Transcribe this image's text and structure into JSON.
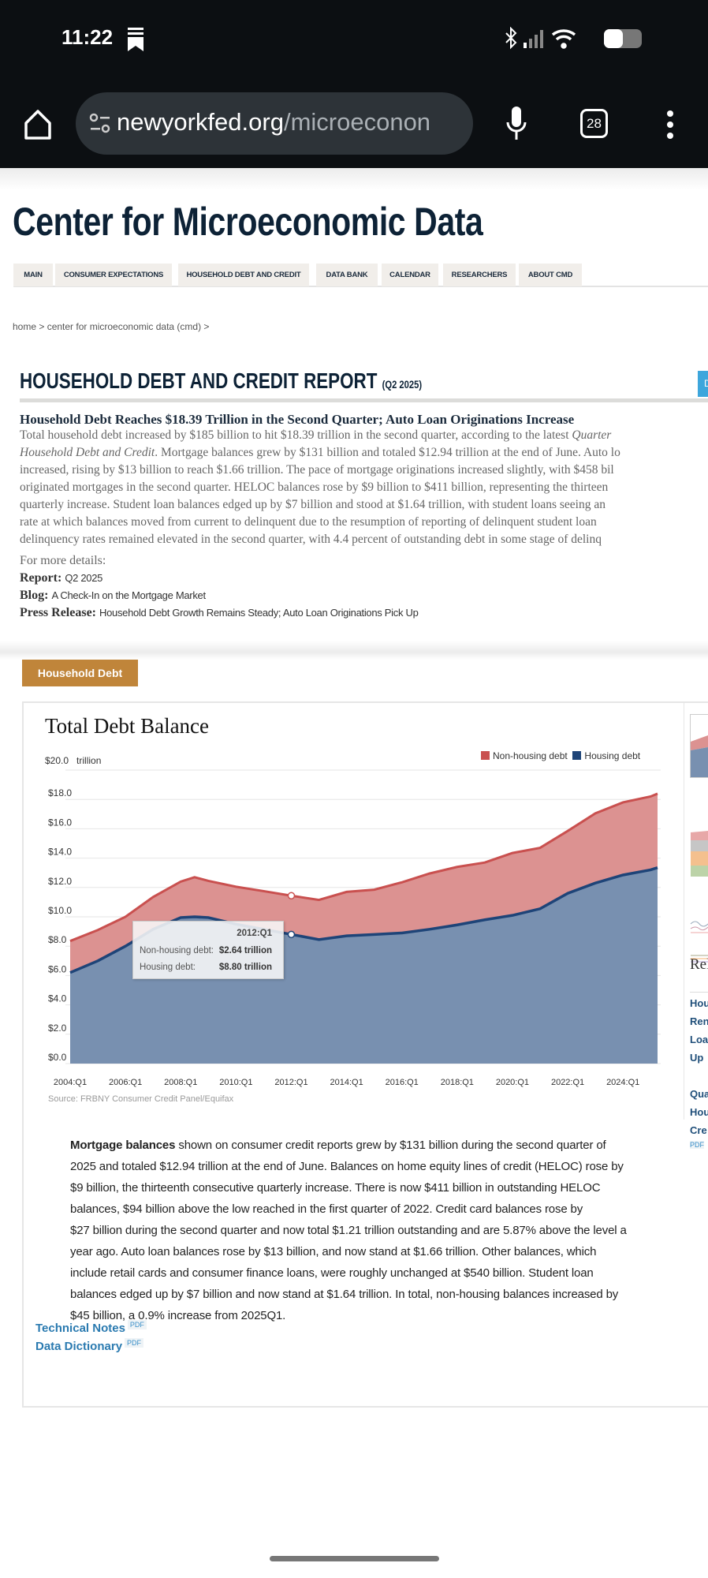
{
  "status": {
    "time": "11:22",
    "tabs_count": "28"
  },
  "browser": {
    "url_host": "newyorkfed.org",
    "url_path": "/microeconon"
  },
  "site": {
    "title": "Center for Microeconomic Data"
  },
  "nav": [
    "MAIN",
    "CONSUMER EXPECTATIONS",
    "HOUSEHOLD DEBT AND CREDIT",
    "DATA BANK",
    "CALENDAR",
    "RESEARCHERS",
    "ABOUT CMD"
  ],
  "breadcrumb": "home > center for microeconomic data (cmd) >",
  "section": {
    "title": "HOUSEHOLD DEBT AND CREDIT REPORT",
    "period": "(Q2 2025)",
    "side_tab": "D"
  },
  "article": {
    "headline": "Household Debt Reaches $18.39 Trillion in the Second Quarter; Auto Loan Originations Increase",
    "lines": [
      "Total household debt increased by $185 billion to hit $18.39 trillion in the second quarter, according to the latest Quarter",
      "Household Debt and Credit. Mortgage balances grew by $131 billion and totaled $12.94 trillion at the end of June. Auto lo",
      "increased, rising by $13 billion to reach $1.66 trillion. The pace of mortgage originations increased slightly, with $458 bil",
      "originated mortgages in the second quarter. HELOC balances rose by $9 billion to $411 billion, representing the thirteen",
      "quarterly increase. Student loan balances edged up by $7 billion and stood at $1.64 trillion, with student loans seeing an",
      "rate at which balances moved from current to delinquent due to the resumption of reporting of delinquent student loan",
      "delinquency rates remained elevated in the second quarter, with 4.4 percent of outstanding debt in some stage of delinq"
    ],
    "more_details": "For more details:",
    "report_label": "Report:",
    "report_value": "Q2 2025",
    "blog_label": "Blog:",
    "blog_value": "A Check-In on the Mortgage Market",
    "press_label": "Press Release:",
    "press_value": "Household Debt Growth Remains Steady; Auto Loan Originations Pick Up"
  },
  "household_debt_button": "Household Debt",
  "chart_data": {
    "type": "area",
    "stacked": true,
    "title": "Total Debt Balance",
    "ylabel_unit": "trillion",
    "ylim": [
      0,
      20
    ],
    "yticks": [
      "$0.0",
      "$2.0",
      "$4.0",
      "$6.0",
      "$8.0",
      "$10.0",
      "$12.0",
      "$14.0",
      "$16.0",
      "$18.0",
      "$20.0"
    ],
    "xticks": [
      "2004:Q1",
      "2006:Q1",
      "2008:Q1",
      "2010:Q1",
      "2012:Q1",
      "2014:Q1",
      "2016:Q1",
      "2018:Q1",
      "2020:Q1",
      "2022:Q1",
      "2024:Q1"
    ],
    "grid": true,
    "legend_position": "top-right",
    "x": [
      "2004:Q1",
      "2005:Q1",
      "2006:Q1",
      "2007:Q1",
      "2008:Q1",
      "2008:Q3",
      "2009:Q1",
      "2010:Q1",
      "2011:Q1",
      "2012:Q1",
      "2013:Q1",
      "2014:Q1",
      "2015:Q1",
      "2016:Q1",
      "2017:Q1",
      "2018:Q1",
      "2019:Q1",
      "2020:Q1",
      "2021:Q1",
      "2022:Q1",
      "2023:Q1",
      "2024:Q1",
      "2025:Q1",
      "2025:Q2"
    ],
    "series": [
      {
        "name": "Housing debt",
        "color": "#1e4478",
        "fill": "#7890b0",
        "values": [
          6.2,
          7.0,
          8.0,
          9.15,
          9.95,
          10.0,
          9.95,
          9.5,
          9.15,
          8.8,
          8.45,
          8.7,
          8.8,
          8.9,
          9.15,
          9.45,
          9.8,
          10.1,
          10.55,
          11.6,
          12.3,
          12.85,
          13.2,
          13.35
        ]
      },
      {
        "name": "Non-housing debt",
        "color": "#c9504f",
        "fill": "#dc9291",
        "values": [
          2.15,
          2.1,
          2.0,
          2.2,
          2.45,
          2.7,
          2.5,
          2.55,
          2.6,
          2.64,
          2.7,
          3.0,
          3.05,
          3.45,
          3.8,
          3.95,
          3.9,
          4.25,
          4.15,
          4.25,
          4.75,
          4.95,
          5.0,
          5.04
        ]
      }
    ],
    "tooltip": {
      "period": "2012:Q1",
      "rows": [
        {
          "label": "Non-housing debt:",
          "value": "$2.64 trillion"
        },
        {
          "label": "Housing debt:",
          "value": "$8.80 trillion"
        }
      ]
    },
    "source": "Source: FRBNY Consumer Credit Panel/Equifax"
  },
  "commentary": {
    "bold": "Mortgage balances",
    "first_rest": " shown on consumer credit reports grew by $131 billion during the second quarter of",
    "lines": [
      "2025 and totaled $12.94 trillion at the end of June. Balances on home equity lines of credit (HELOC) rose by",
      "$9 billion, the thirteenth consecutive quarterly increase. There is now $411 billion in outstanding HELOC",
      "balances, $94 billion above the low reached in the first quarter of 2022. Credit card balances rose by",
      "$27 billion during the second quarter and now total $1.21 trillion outstanding and are 5.87% above the level a",
      "year ago. Auto loan balances rose by $13 billion, and now stand at $1.66 trillion. Other balances, which",
      "include retail cards and consumer finance loans, were roughly unchanged at $540 billion. Student loan",
      "balances edged up by $7 billion and now stand at $1.64 trillion. In total, non-housing balances increased by",
      "$45 billion, a 0.9% increase from 2025Q1."
    ]
  },
  "links": [
    {
      "label": "Technical Notes",
      "badge": "PDF"
    },
    {
      "label": "Data Dictionary",
      "badge": "PDF"
    }
  ],
  "right_column": {
    "heading": "Rel",
    "links": [
      "Hou",
      "Ren",
      "Loa",
      "Up",
      "Qua",
      "Hou",
      "Cre"
    ],
    "badge": "PDF"
  }
}
